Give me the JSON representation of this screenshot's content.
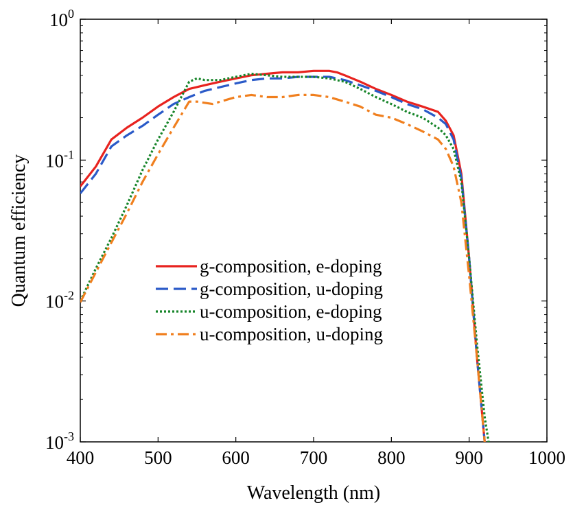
{
  "chart_data": {
    "type": "line",
    "xlabel": "Wavelength (nm)",
    "ylabel": "Quantum efficiency",
    "xlim": [
      400,
      1000
    ],
    "ylim": [
      0.001,
      1
    ],
    "yscale": "log",
    "grid": false,
    "legend_position": "center-left",
    "x_ticks": [
      "400",
      "500",
      "600",
      "700",
      "800",
      "900",
      "1000"
    ],
    "y_ticks": [
      {
        "value": 1,
        "base": "10",
        "exp": "0"
      },
      {
        "value": 0.1,
        "base": "10",
        "exp": "-1"
      },
      {
        "value": 0.01,
        "base": "10",
        "exp": "-2"
      },
      {
        "value": 0.001,
        "base": "10",
        "exp": "-3"
      }
    ],
    "series": [
      {
        "name": "g-composition, e-doping",
        "color": "#e8231f",
        "style": "solid",
        "x": [
          400,
          420,
          440,
          460,
          480,
          500,
          520,
          540,
          560,
          580,
          600,
          620,
          640,
          660,
          680,
          700,
          720,
          730,
          740,
          760,
          780,
          800,
          820,
          840,
          860,
          870,
          880,
          890,
          900,
          910,
          920
        ],
        "y": [
          0.065,
          0.09,
          0.14,
          0.17,
          0.2,
          0.24,
          0.28,
          0.32,
          0.34,
          0.36,
          0.38,
          0.4,
          0.41,
          0.42,
          0.42,
          0.43,
          0.43,
          0.42,
          0.4,
          0.36,
          0.32,
          0.29,
          0.26,
          0.24,
          0.22,
          0.19,
          0.15,
          0.08,
          0.02,
          0.004,
          0.001
        ]
      },
      {
        "name": "g-composition, u-doping",
        "color": "#2a5ac8",
        "style": "dashed",
        "x": [
          400,
          420,
          440,
          460,
          480,
          500,
          520,
          540,
          560,
          580,
          600,
          620,
          640,
          660,
          680,
          700,
          720,
          740,
          760,
          780,
          800,
          820,
          840,
          860,
          870,
          880,
          890,
          900,
          910,
          920
        ],
        "y": [
          0.058,
          0.08,
          0.125,
          0.15,
          0.175,
          0.21,
          0.25,
          0.28,
          0.31,
          0.33,
          0.35,
          0.37,
          0.38,
          0.38,
          0.39,
          0.39,
          0.39,
          0.37,
          0.34,
          0.31,
          0.28,
          0.25,
          0.23,
          0.2,
          0.18,
          0.14,
          0.075,
          0.02,
          0.004,
          0.001
        ]
      },
      {
        "name": "u-composition, e-doping",
        "color": "#17852a",
        "style": "dotted",
        "x": [
          400,
          420,
          440,
          460,
          480,
          500,
          520,
          540,
          550,
          560,
          580,
          600,
          620,
          640,
          660,
          680,
          700,
          720,
          740,
          760,
          780,
          800,
          820,
          840,
          860,
          870,
          880,
          890,
          900,
          910,
          920,
          925
        ],
        "y": [
          0.01,
          0.017,
          0.028,
          0.048,
          0.085,
          0.14,
          0.22,
          0.36,
          0.38,
          0.37,
          0.37,
          0.39,
          0.41,
          0.4,
          0.39,
          0.39,
          0.39,
          0.38,
          0.36,
          0.32,
          0.28,
          0.25,
          0.22,
          0.2,
          0.17,
          0.15,
          0.12,
          0.07,
          0.02,
          0.005,
          0.0015,
          0.001
        ]
      },
      {
        "name": "u-composition, u-doping",
        "color": "#f07f1e",
        "style": "dashdot",
        "x": [
          400,
          420,
          440,
          460,
          480,
          500,
          520,
          540,
          550,
          570,
          580,
          600,
          620,
          640,
          660,
          680,
          700,
          720,
          740,
          760,
          780,
          800,
          820,
          840,
          860,
          870,
          880,
          890,
          900,
          910,
          920
        ],
        "y": [
          0.0098,
          0.016,
          0.026,
          0.042,
          0.07,
          0.11,
          0.17,
          0.26,
          0.26,
          0.25,
          0.26,
          0.28,
          0.29,
          0.28,
          0.28,
          0.29,
          0.29,
          0.28,
          0.26,
          0.24,
          0.21,
          0.2,
          0.18,
          0.16,
          0.14,
          0.12,
          0.09,
          0.05,
          0.015,
          0.004,
          0.001
        ]
      }
    ]
  }
}
